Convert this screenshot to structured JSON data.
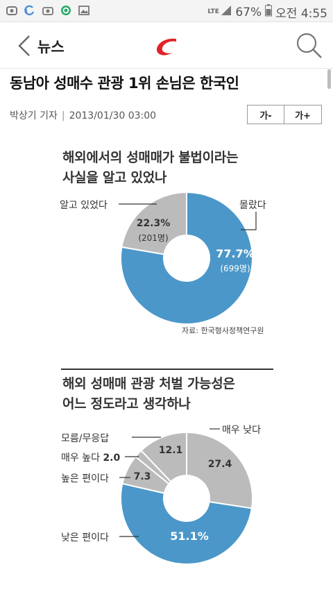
{
  "status_bar": {
    "network": "LTE",
    "battery": "67%",
    "time": "오전 4:55"
  },
  "header": {
    "back_label": "뉴스"
  },
  "article": {
    "title": "동남아 성매수 관광 1위 손님은 한국인",
    "reporter": "박상기 기자",
    "date": "2013/01/30 03:00",
    "font_smaller": "가-",
    "font_larger": "가+"
  },
  "colors": {
    "blue": "#4b97c9",
    "gray": "#bbbbbb",
    "brand_red": "#e0222a"
  },
  "chart_data": [
    {
      "type": "pie",
      "style": "donut",
      "title_lines": [
        "해외에서의 성매매가 불법이라는",
        "사실을 알고 있었나"
      ],
      "slices": [
        {
          "label": "몰랐다",
          "value": 77.7,
          "display": "77.7%",
          "count": "(699명)",
          "color": "#4b97c9"
        },
        {
          "label": "알고 있었다",
          "value": 22.3,
          "display": "22.3%",
          "count": "(201명)",
          "color": "#bbbbbb"
        }
      ],
      "source": "자료: 한국형사정책연구원"
    },
    {
      "type": "pie",
      "style": "donut",
      "title_lines": [
        "해외 성매매 관광 처벌 가능성은",
        "어느 정도라고 생각하나"
      ],
      "slices": [
        {
          "label": "매우 낮다",
          "value": 27.4,
          "display": "27.4",
          "color": "#bbbbbb"
        },
        {
          "label": "낮은 편이다",
          "value": 51.1,
          "display": "51.1%",
          "color": "#4b97c9"
        },
        {
          "label": "높은 편이다",
          "value": 7.3,
          "display": "7.3",
          "color": "#bbbbbb"
        },
        {
          "label": "매우 높다",
          "value": 2.0,
          "display": "2.0",
          "color": "#bbbbbb"
        },
        {
          "label": "모름/무응답",
          "value": 12.1,
          "display": "12.1",
          "color": "#bbbbbb"
        }
      ]
    }
  ]
}
